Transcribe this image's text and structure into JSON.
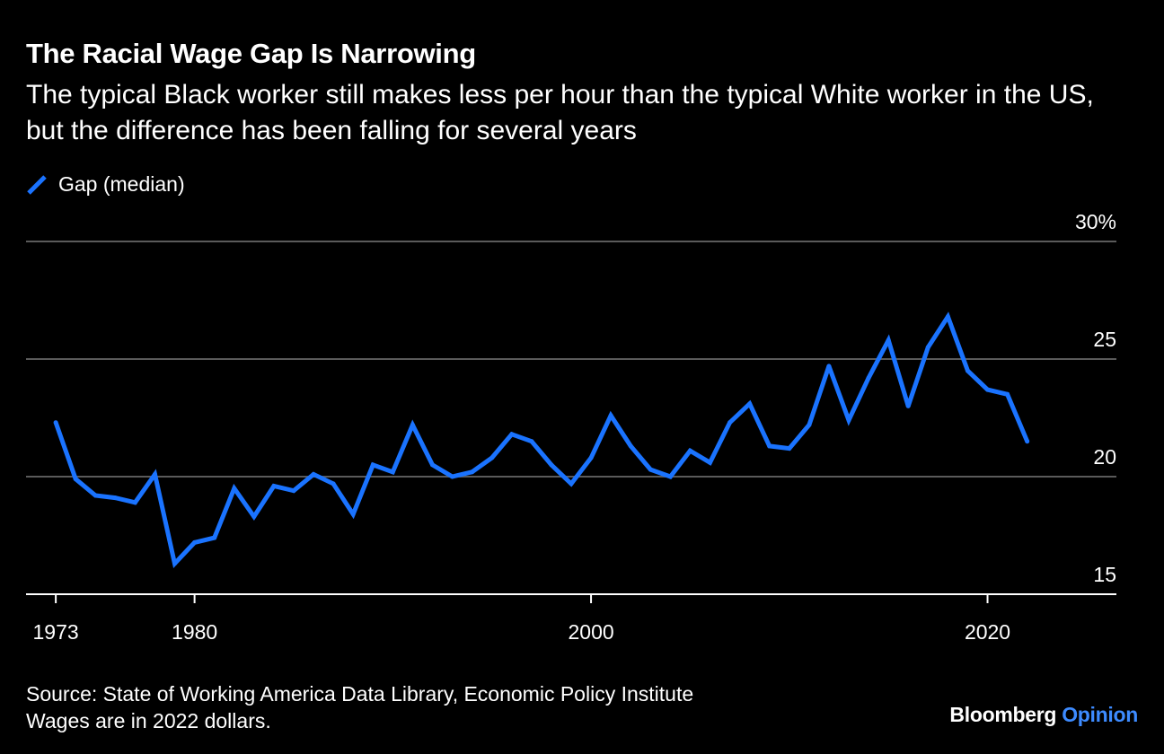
{
  "colors": {
    "background": "#000000",
    "text": "#ffffff",
    "series": "#1a73ff",
    "gridline": "#5a5a5a",
    "axis": "#ffffff",
    "brand_accent": "#3d8bff"
  },
  "chart_data": {
    "type": "line",
    "title": "The Racial Wage Gap Is Narrowing",
    "subtitle": "The typical Black worker still makes less per hour than the typical White worker in the US, but the difference has been falling for several years",
    "legend": [
      "Gap (median)"
    ],
    "legend_position": "top-left",
    "xlabel": "",
    "ylabel": "",
    "x_ticks": [
      "1973",
      "1980",
      "2000",
      "2020"
    ],
    "x_tick_values": [
      1973,
      1980,
      2000,
      2020
    ],
    "y_ticks": [
      "30%",
      "25",
      "20",
      "15"
    ],
    "y_tick_values": [
      30,
      25,
      20,
      15
    ],
    "xlim": [
      1971.5,
      2026.5
    ],
    "ylim": [
      15,
      30
    ],
    "grid": true,
    "series": [
      {
        "name": "Gap (median)",
        "x": [
          1973,
          1974,
          1975,
          1976,
          1977,
          1978,
          1979,
          1980,
          1981,
          1982,
          1983,
          1984,
          1985,
          1986,
          1987,
          1988,
          1989,
          1990,
          1991,
          1992,
          1993,
          1994,
          1995,
          1996,
          1997,
          1998,
          1999,
          2000,
          2001,
          2002,
          2003,
          2004,
          2005,
          2006,
          2007,
          2008,
          2009,
          2010,
          2011,
          2012,
          2013,
          2014,
          2015,
          2016,
          2017,
          2018,
          2019,
          2020,
          2021,
          2022
        ],
        "values": [
          22.3,
          19.9,
          19.2,
          19.1,
          18.9,
          20.1,
          16.3,
          17.2,
          17.4,
          19.5,
          18.3,
          19.6,
          19.4,
          20.1,
          19.7,
          18.4,
          20.5,
          20.2,
          22.2,
          20.5,
          20.0,
          20.2,
          20.8,
          21.8,
          21.5,
          20.5,
          19.7,
          20.8,
          22.6,
          21.3,
          20.3,
          20.0,
          21.1,
          20.6,
          22.3,
          23.1,
          21.3,
          21.2,
          22.2,
          24.7,
          22.4,
          24.2,
          25.8,
          23.0,
          25.5,
          26.8,
          24.5,
          23.7,
          23.5,
          21.5
        ]
      }
    ]
  },
  "footer": {
    "source": "Source: State of Working America Data Library, Economic Policy Institute",
    "note": "Wages are in 2022 dollars."
  },
  "brand": {
    "name": "Bloomberg",
    "section": "Opinion"
  }
}
